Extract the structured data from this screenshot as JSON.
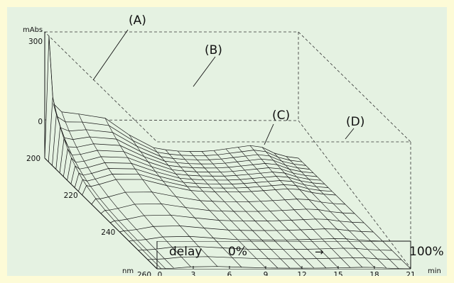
{
  "chart_data": {
    "type": "surface-3d",
    "annotations": [
      "(A)",
      "(B)",
      "(C)",
      "(D)"
    ],
    "z_axis": {
      "unit_label": "mAbs",
      "ticks": [
        "300",
        "0"
      ],
      "range": [
        0,
        300
      ]
    },
    "wavelength_axis": {
      "unit_label": "nm",
      "ticks": [
        "200",
        "220",
        "240",
        "260"
      ],
      "range": [
        200,
        260
      ]
    },
    "time_axis": {
      "unit_label": "min",
      "ticks": [
        "0",
        "3",
        "6",
        "9",
        "12",
        "15",
        "18",
        "21"
      ],
      "range": [
        0,
        21
      ]
    },
    "gradient": {
      "label": "delay",
      "start": "0%",
      "arrow": "→",
      "end": "100%"
    },
    "surface": {
      "times_min": [
        0,
        0.35,
        0.7,
        1.4,
        2.8,
        5,
        7,
        9,
        10,
        11,
        12,
        13,
        14,
        15,
        16,
        17,
        18,
        19,
        20,
        21
      ],
      "wavelengths_nm": [
        200,
        202,
        204,
        206,
        208,
        210,
        212,
        214,
        216,
        218,
        220,
        225,
        230,
        235,
        240,
        245,
        250,
        255,
        260
      ],
      "profile_at_200nm_mAbs": [
        0,
        190,
        130,
        110,
        105,
        95,
        55,
        25,
        20,
        17,
        16,
        16,
        18,
        22,
        26,
        30,
        26,
        12,
        4,
        0
      ],
      "peak_A_mAbs": 290,
      "peak_A_time_min": 0.35
    }
  },
  "colors": {
    "background": "#fdfbd7",
    "plot_area": "#e5f2e2",
    "lines": "#111111"
  }
}
